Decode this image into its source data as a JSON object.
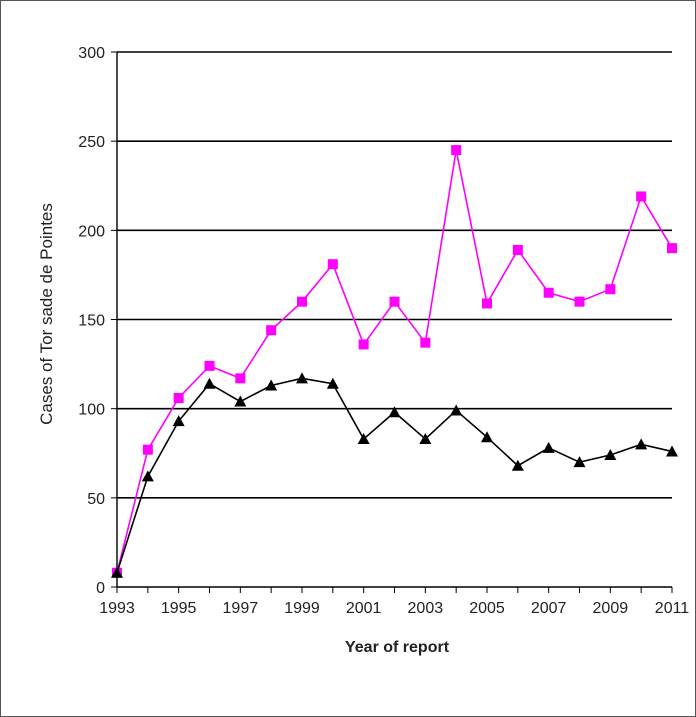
{
  "chart_data": {
    "type": "line",
    "title": "",
    "xlabel": "Year of report",
    "ylabel": "Cases of Tor sade de Pointes",
    "x": [
      1993,
      1994,
      1995,
      1996,
      1997,
      1998,
      1999,
      2000,
      2001,
      2002,
      2003,
      2004,
      2005,
      2006,
      2007,
      2008,
      2009,
      2010,
      2011
    ],
    "x_tick_labels": [
      "1993",
      "1995",
      "1997",
      "1999",
      "2001",
      "2003",
      "2005",
      "2007",
      "2009",
      "2011"
    ],
    "y_tick_labels": [
      "0",
      "50",
      "100",
      "150",
      "200",
      "250",
      "300"
    ],
    "ylim": [
      0,
      300
    ],
    "xlim": [
      1993,
      2011
    ],
    "grid": "horizontal",
    "legend": "none",
    "series": [
      {
        "color": "#ff00ff",
        "marker": "square",
        "values": [
          8,
          77,
          106,
          124,
          117,
          144,
          160,
          181,
          136,
          160,
          137,
          245,
          159,
          189,
          165,
          160,
          167,
          219,
          190
        ]
      },
      {
        "color": "#000000",
        "marker": "triangle",
        "values": [
          8,
          62,
          93,
          114,
          104,
          113,
          117,
          114,
          83,
          98,
          83,
          99,
          84,
          68,
          78,
          70,
          74,
          80,
          76
        ]
      }
    ]
  }
}
